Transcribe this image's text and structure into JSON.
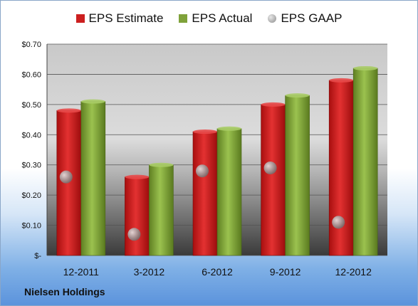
{
  "chart_data": {
    "type": "bar",
    "categories": [
      "12-2011",
      "3-2012",
      "6-2012",
      "9-2012",
      "12-2012"
    ],
    "series": [
      {
        "name": "EPS Estimate",
        "kind": "bar",
        "color": "#cc1f1f",
        "values": [
          0.48,
          0.26,
          0.41,
          0.5,
          0.58
        ]
      },
      {
        "name": "EPS Actual",
        "kind": "bar",
        "color": "#7fa23a",
        "values": [
          0.51,
          0.3,
          0.42,
          0.53,
          0.62
        ]
      },
      {
        "name": "EPS GAAP",
        "kind": "marker",
        "color": "#9a9a9a",
        "values": [
          0.26,
          0.07,
          0.28,
          0.29,
          0.11
        ]
      }
    ],
    "ylim": [
      0,
      0.7
    ],
    "yticks": [
      0,
      0.1,
      0.2,
      0.3,
      0.4,
      0.5,
      0.6,
      0.7
    ],
    "ytick_labels": [
      "$-",
      "$0.10",
      "$0.20",
      "$0.30",
      "$0.40",
      "$0.50",
      "$0.60",
      "$0.70"
    ],
    "legend_position": "top",
    "grid": true,
    "title": "",
    "xlabel": "",
    "ylabel": ""
  },
  "footer": {
    "company": "Nielsen Holdings"
  }
}
